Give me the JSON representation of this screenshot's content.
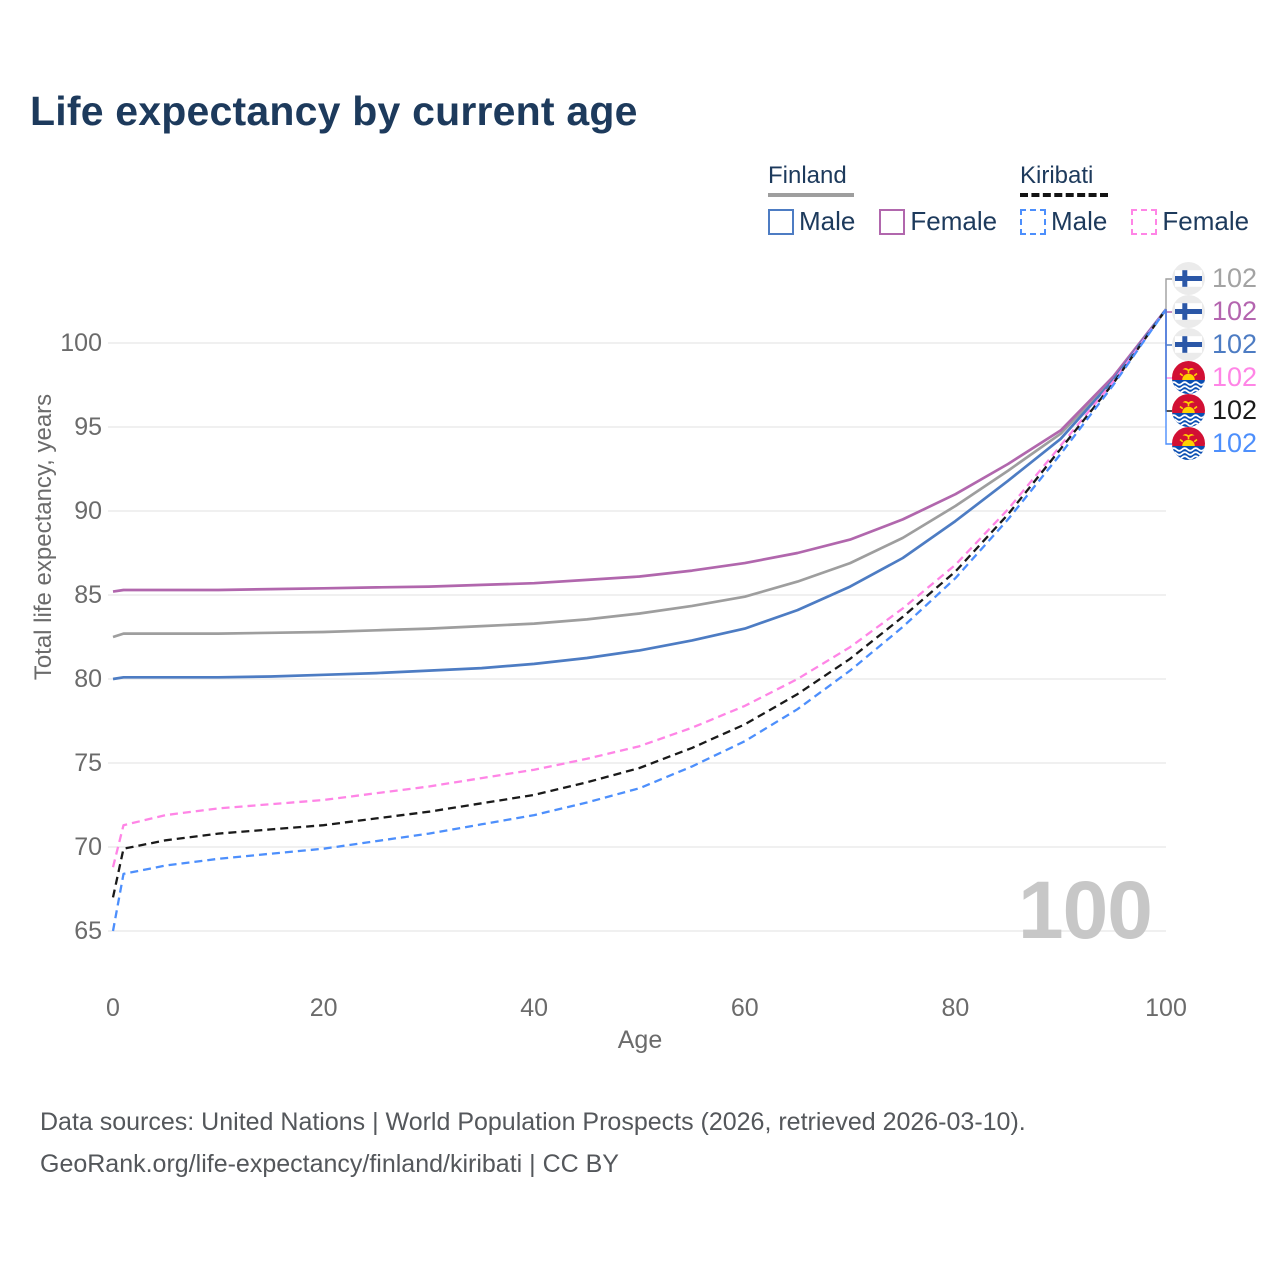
{
  "title": "Life expectancy by current age",
  "legend": {
    "groups": [
      {
        "label": "Finland",
        "line_style": "solid",
        "items": [
          {
            "label": "Male",
            "color": "#4d7cc3"
          },
          {
            "label": "Female",
            "color": "#b167ad"
          }
        ]
      },
      {
        "label": "Kiribati",
        "line_style": "dashed",
        "items": [
          {
            "label": "Male",
            "color": "#4d8ffc"
          },
          {
            "label": "Female",
            "color": "#ff85e6"
          }
        ]
      }
    ]
  },
  "watermark": "100",
  "footer": {
    "line1": "Data sources: United Nations | World Population Prospects (2026, retrieved 2026-03-10).",
    "line2": "GeoRank.org/life-expectancy/finland/kiribati | CC BY"
  },
  "colors": {
    "title_text": "#1d3a5c",
    "axis_text": "#6b6b6b",
    "gridline": "#e8e8e8",
    "watermark": "#c7c7c7",
    "footer_text": "#54575b"
  },
  "chart_data": {
    "type": "line",
    "title": "Life expectancy by current age",
    "xlabel": "Age",
    "ylabel": "Total life expectancy, years",
    "x_ticks": [
      0,
      20,
      40,
      60,
      80,
      100
    ],
    "y_ticks": [
      65,
      70,
      75,
      80,
      85,
      90,
      95,
      100
    ],
    "xlim": [
      0,
      100
    ],
    "ylim": [
      65,
      102
    ],
    "grid": "horizontal",
    "legend_position": "top-right",
    "x": [
      0,
      1,
      5,
      10,
      15,
      20,
      25,
      30,
      35,
      40,
      45,
      50,
      55,
      60,
      65,
      70,
      75,
      80,
      85,
      90,
      95,
      100
    ],
    "series": [
      {
        "name": "Finland — Both sexes",
        "country": "Finland",
        "sex": "Both",
        "line": "solid",
        "color": "#9e9e9e",
        "label_color": "#a3a3a3",
        "flag": "finland",
        "end_label": "102",
        "values": [
          82.5,
          82.7,
          82.7,
          82.7,
          82.75,
          82.8,
          82.9,
          83.0,
          83.15,
          83.3,
          83.55,
          83.9,
          84.35,
          84.9,
          85.8,
          86.9,
          88.4,
          90.3,
          92.4,
          94.6,
          97.9,
          102
        ]
      },
      {
        "name": "Finland — Female",
        "country": "Finland",
        "sex": "Female",
        "line": "solid",
        "color": "#b167ad",
        "label_color": "#b465af",
        "flag": "finland",
        "end_label": "102",
        "values": [
          85.2,
          85.3,
          85.3,
          85.3,
          85.35,
          85.4,
          85.45,
          85.5,
          85.6,
          85.7,
          85.9,
          86.1,
          86.45,
          86.9,
          87.5,
          88.3,
          89.5,
          91.0,
          92.8,
          94.8,
          98.0,
          102
        ]
      },
      {
        "name": "Finland — Male",
        "country": "Finland",
        "sex": "Male",
        "line": "solid",
        "color": "#4d7cc3",
        "label_color": "#4d7cc3",
        "flag": "finland",
        "end_label": "102",
        "values": [
          80.0,
          80.1,
          80.1,
          80.1,
          80.15,
          80.25,
          80.35,
          80.5,
          80.65,
          80.9,
          81.25,
          81.7,
          82.3,
          83.0,
          84.1,
          85.5,
          87.2,
          89.4,
          91.8,
          94.3,
          97.8,
          102
        ]
      },
      {
        "name": "Kiribati — Female",
        "country": "Kiribati",
        "sex": "Female",
        "line": "dashed",
        "color": "#ff85e6",
        "label_color": "#ff85e6",
        "flag": "kiribati",
        "end_label": "102",
        "values": [
          68.8,
          71.3,
          71.9,
          72.3,
          72.55,
          72.8,
          73.2,
          73.6,
          74.1,
          74.6,
          75.25,
          76.0,
          77.1,
          78.4,
          80.0,
          81.9,
          84.2,
          86.8,
          90.1,
          93.9,
          97.7,
          102
        ]
      },
      {
        "name": "Kiribati — Both sexes",
        "country": "Kiribati",
        "sex": "Both",
        "line": "dashed",
        "color": "#1a1a1a",
        "label_color": "#1a1a1a",
        "flag": "kiribati",
        "end_label": "102",
        "values": [
          67.0,
          69.9,
          70.4,
          70.8,
          71.05,
          71.3,
          71.7,
          72.1,
          72.6,
          73.1,
          73.85,
          74.7,
          75.9,
          77.3,
          79.1,
          81.2,
          83.7,
          86.4,
          89.8,
          93.7,
          97.6,
          102
        ]
      },
      {
        "name": "Kiribati — Male",
        "country": "Kiribati",
        "sex": "Male",
        "line": "dashed",
        "color": "#4d8ffc",
        "label_color": "#4d8ffc",
        "flag": "kiribati",
        "end_label": "102",
        "values": [
          65.0,
          68.4,
          68.9,
          69.3,
          69.6,
          69.9,
          70.35,
          70.8,
          71.35,
          71.9,
          72.65,
          73.5,
          74.8,
          76.3,
          78.2,
          80.5,
          83.1,
          86.0,
          89.5,
          93.4,
          97.5,
          102
        ]
      }
    ]
  }
}
